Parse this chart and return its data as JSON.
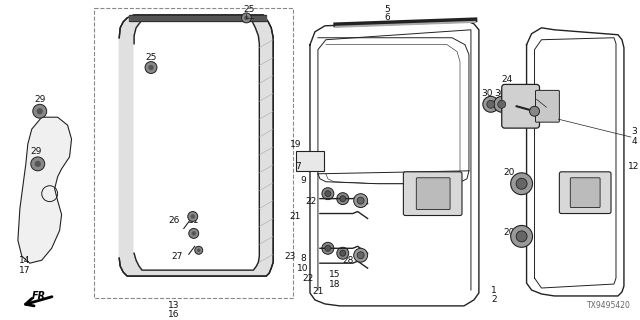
{
  "bg_color": "#ffffff",
  "diagram_id": "TX9495420",
  "dark": "#222222",
  "gray": "#888888",
  "light_gray": "#cccccc"
}
